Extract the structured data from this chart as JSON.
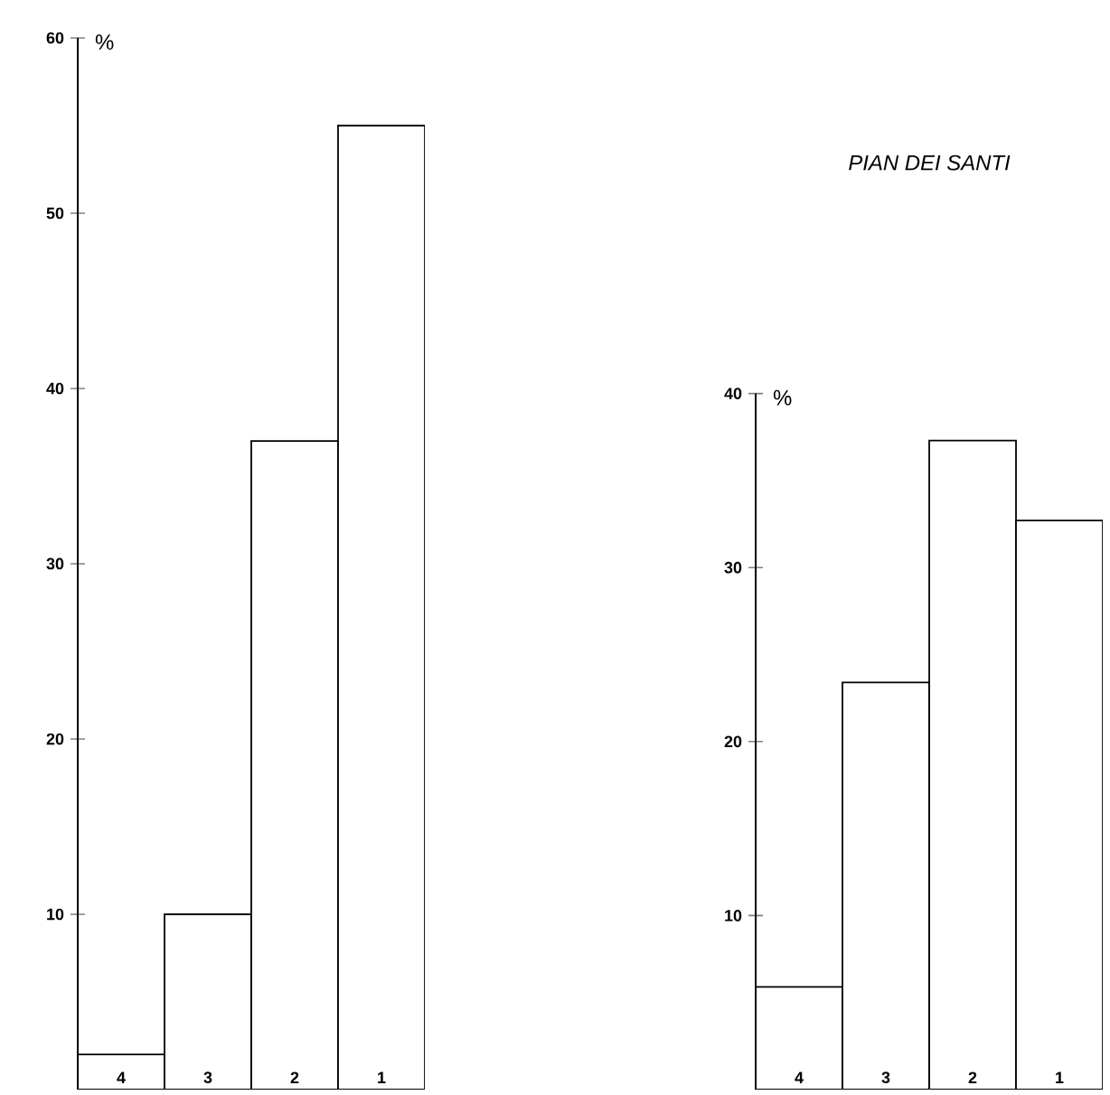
{
  "chart_data": [
    {
      "type": "bar",
      "ylabel": "%",
      "categories": [
        "4",
        "3",
        "2",
        "1"
      ],
      "values": [
        2,
        10,
        37,
        55
      ],
      "color": "#ffffff",
      "ylim": [
        0,
        60
      ],
      "yticks": [
        10,
        20,
        30,
        40,
        50,
        60
      ]
    },
    {
      "type": "bar",
      "title": "PIAN DEI SANTI",
      "ylabel": "%",
      "categories": [
        "4",
        "3",
        "2",
        "1"
      ],
      "values": [
        5.9,
        23.4,
        37.3,
        32.7
      ],
      "color": "#ffffff",
      "ylim": [
        0,
        40
      ],
      "yticks": [
        10,
        20,
        30,
        40
      ]
    }
  ]
}
